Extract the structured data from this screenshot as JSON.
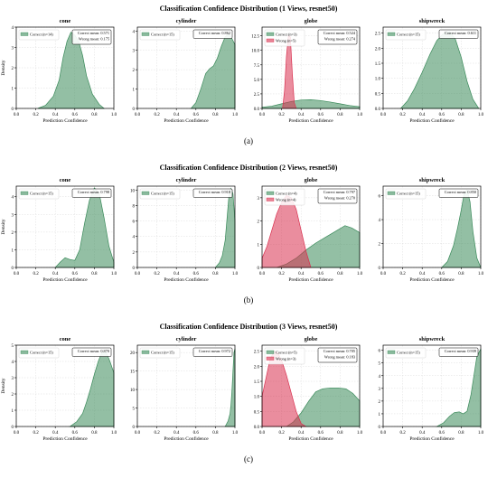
{
  "colors": {
    "correct": "#3a8a5a",
    "wrong": "#d9304f",
    "axis": "#000000",
    "grid": "#dddddd"
  },
  "chart_data": [
    {
      "type": "area",
      "title": "Classification Confidence Distribution (1 Views, resnet50)",
      "label": "(a)",
      "subplots": [
        {
          "title": "cone",
          "ylim": [
            0,
            4
          ],
          "yticks": [
            "0",
            "1",
            "2",
            "3",
            "4"
          ],
          "xlabel": "Prediction Confidence",
          "ylabel": "Density",
          "legend": [
            "Correct (n=14)"
          ],
          "stats": [
            "Correct mean: 0.571",
            "Wrong mean: 0.175"
          ],
          "series": [
            {
              "name": "Correct (n=14)",
              "kind": "correct",
              "x": [
                0.22,
                0.3,
                0.38,
                0.44,
                0.48,
                0.52,
                0.56,
                0.6,
                0.64,
                0.68,
                0.72,
                0.78,
                0.85,
                0.9
              ],
              "y": [
                0,
                0.15,
                0.6,
                1.4,
                2.5,
                3.3,
                3.75,
                3.6,
                3.3,
                2.6,
                1.6,
                0.7,
                0.2,
                0
              ]
            }
          ]
        },
        {
          "title": "cylinder",
          "ylim": [
            0,
            4.2
          ],
          "yticks": [
            "0",
            "1",
            "2",
            "3",
            "4"
          ],
          "xlabel": "Prediction Confidence",
          "ylabel": "",
          "legend": [
            "Correct (n=15)"
          ],
          "stats": [
            "Correct mean: 0.862"
          ],
          "series": [
            {
              "name": "Correct (n=15)",
              "kind": "correct",
              "x": [
                0.55,
                0.6,
                0.65,
                0.7,
                0.74,
                0.78,
                0.82,
                0.86,
                0.9,
                0.94,
                0.97,
                1.0
              ],
              "y": [
                0,
                0.3,
                1.0,
                1.8,
                2.05,
                2.2,
                2.6,
                3.2,
                3.7,
                3.85,
                3.6,
                3.3
              ]
            }
          ]
        },
        {
          "title": "globe",
          "ylim": [
            0,
            14
          ],
          "yticks": [
            "0.0",
            "2.5",
            "5.0",
            "7.5",
            "10.0",
            "12.5"
          ],
          "xlabel": "Prediction Confidence",
          "ylabel": "",
          "legend": [
            "Correct (n=3)",
            "Wrong (n=5)"
          ],
          "stats": [
            "Correct mean: 0.524",
            "Wrong mean: 0.274"
          ],
          "series": [
            {
              "name": "Correct (n=3)",
              "kind": "correct",
              "x": [
                0.0,
                0.1,
                0.2,
                0.3,
                0.4,
                0.5,
                0.6,
                0.7,
                0.8,
                0.9,
                1.0
              ],
              "y": [
                0.2,
                0.4,
                0.8,
                1.2,
                1.45,
                1.5,
                1.35,
                1.1,
                0.8,
                0.5,
                0.3
              ]
            },
            {
              "name": "Wrong (n=5)",
              "kind": "wrong",
              "x": [
                0.21,
                0.23,
                0.25,
                0.27,
                0.29,
                0.31,
                0.33,
                0.35
              ],
              "y": [
                0,
                3,
                9,
                12.5,
                12.3,
                6,
                1,
                0
              ]
            }
          ]
        },
        {
          "title": "shipwreck",
          "ylim": [
            0,
            2.7
          ],
          "yticks": [
            "0.0",
            "0.5",
            "1.0",
            "1.5",
            "2.0",
            "2.5"
          ],
          "xlabel": "Prediction Confidence",
          "ylabel": "",
          "legend": [
            "Correct (n=15)"
          ],
          "stats": [
            "Correct mean: 0.611"
          ],
          "series": [
            {
              "name": "Correct (n=15)",
              "kind": "correct",
              "x": [
                0.18,
                0.25,
                0.32,
                0.4,
                0.48,
                0.55,
                0.62,
                0.68,
                0.74,
                0.8,
                0.86,
                0.92,
                0.98
              ],
              "y": [
                0,
                0.25,
                0.65,
                1.2,
                1.8,
                2.25,
                2.5,
                2.55,
                2.3,
                1.7,
                0.9,
                0.3,
                0
              ]
            }
          ]
        }
      ]
    },
    {
      "type": "area",
      "title": "Classification Confidence Distribution (2 Views, resnet50)",
      "label": "(b)",
      "subplots": [
        {
          "title": "cone",
          "ylim": [
            0,
            4.6
          ],
          "yticks": [
            "0",
            "1",
            "2",
            "3",
            "4"
          ],
          "xlabel": "Prediction Confidence",
          "ylabel": "Density",
          "legend": [
            "Correct (n=15)"
          ],
          "stats": [
            "Correct mean: 0.798"
          ],
          "series": [
            {
              "name": "Correct (n=15)",
              "kind": "correct",
              "x": [
                0.4,
                0.45,
                0.5,
                0.55,
                0.6,
                0.65,
                0.7,
                0.75,
                0.8,
                0.85,
                0.9,
                0.95,
                1.0
              ],
              "y": [
                0,
                0.3,
                0.55,
                0.45,
                0.4,
                1.0,
                2.5,
                3.8,
                4.5,
                4.2,
                2.8,
                1.2,
                0.3
              ]
            }
          ]
        },
        {
          "title": "cylinder",
          "ylim": [
            0,
            10.5
          ],
          "yticks": [
            "0",
            "2",
            "4",
            "6",
            "8",
            "10"
          ],
          "xlabel": "Prediction Confidence",
          "ylabel": "",
          "legend": [
            "Correct (n=15)"
          ],
          "stats": [
            "Correct mean: 0.918"
          ],
          "series": [
            {
              "name": "Correct (n=15)",
              "kind": "correct",
              "x": [
                0.8,
                0.84,
                0.87,
                0.9,
                0.92,
                0.94,
                0.96,
                0.98,
                1.0
              ],
              "y": [
                0,
                0.6,
                1.5,
                3.5,
                6.5,
                9.5,
                10.2,
                9.5,
                6.0
              ]
            }
          ]
        },
        {
          "title": "globe",
          "ylim": [
            0,
            3.5
          ],
          "yticks": [
            "0",
            "1",
            "2",
            "3"
          ],
          "xlabel": "Prediction Confidence",
          "ylabel": "",
          "legend": [
            "Correct (n=4)",
            "Wrong (n=4)"
          ],
          "stats": [
            "Correct mean: 0.797",
            "Wrong mean: 0.270"
          ],
          "series": [
            {
              "name": "Correct (n=4)",
              "kind": "correct",
              "x": [
                0.15,
                0.25,
                0.35,
                0.45,
                0.55,
                0.65,
                0.75,
                0.85,
                0.92,
                1.0
              ],
              "y": [
                0,
                0.15,
                0.4,
                0.75,
                1.05,
                1.3,
                1.55,
                1.8,
                1.7,
                1.5
              ]
            },
            {
              "name": "Wrong (n=4)",
              "kind": "wrong",
              "x": [
                0.0,
                0.05,
                0.1,
                0.15,
                0.2,
                0.25,
                0.3,
                0.35,
                0.4,
                0.45,
                0.5
              ],
              "y": [
                0.4,
                0.9,
                1.6,
                2.3,
                2.8,
                3.1,
                3.0,
                2.5,
                1.6,
                0.7,
                0
              ]
            }
          ]
        },
        {
          "title": "shipwreck",
          "ylim": [
            0,
            6.8
          ],
          "yticks": [
            "0",
            "2",
            "4",
            "6"
          ],
          "xlabel": "Prediction Confidence",
          "ylabel": "",
          "legend": [
            "Correct (n=15)"
          ],
          "stats": [
            "Correct mean: 0.850"
          ],
          "series": [
            {
              "name": "Correct (n=15)",
              "kind": "correct",
              "x": [
                0.6,
                0.66,
                0.72,
                0.76,
                0.8,
                0.83,
                0.86,
                0.89,
                0.92,
                0.96,
                1.0
              ],
              "y": [
                0,
                0.5,
                1.8,
                3.2,
                4.8,
                6.2,
                6.5,
                5.5,
                3.0,
                0.8,
                0
              ]
            }
          ]
        }
      ]
    },
    {
      "type": "area",
      "title": "Classification Confidence Distribution (3 Views, resnet50)",
      "label": "(c)",
      "subplots": [
        {
          "title": "cone",
          "ylim": [
            0,
            5
          ],
          "yticks": [
            "0",
            "1",
            "2",
            "3",
            "4",
            "5"
          ],
          "xlabel": "Prediction Confidence",
          "ylabel": "Density",
          "legend": [
            "Correct (n=15)"
          ],
          "stats": [
            "Correct mean: 0.870"
          ],
          "series": [
            {
              "name": "Correct (n=15)",
              "kind": "correct",
              "x": [
                0.55,
                0.62,
                0.68,
                0.72,
                0.76,
                0.8,
                0.84,
                0.88,
                0.92,
                0.96,
                1.0
              ],
              "y": [
                0,
                0.3,
                0.8,
                1.5,
                2.3,
                3.2,
                4.0,
                4.6,
                4.6,
                4.0,
                3.3
              ]
            }
          ]
        },
        {
          "title": "cylinder",
          "ylim": [
            0,
            22
          ],
          "yticks": [
            "0",
            "5",
            "10",
            "15",
            "20"
          ],
          "xlabel": "Prediction Confidence",
          "ylabel": "",
          "legend": [
            "Correct (n=15)"
          ],
          "stats": [
            "Correct mean: 0.972"
          ],
          "series": [
            {
              "name": "Correct (n=15)",
              "kind": "correct",
              "x": [
                0.9,
                0.93,
                0.95,
                0.96,
                0.97,
                0.98,
                0.99,
                1.0
              ],
              "y": [
                0,
                1.5,
                3.5,
                6.0,
                10.0,
                15.0,
                20.0,
                21.0
              ]
            }
          ]
        },
        {
          "title": "globe",
          "ylim": [
            0,
            2.7
          ],
          "yticks": [
            "0.0",
            "0.5",
            "1.0",
            "1.5",
            "2.0",
            "2.5"
          ],
          "xlabel": "Prediction Confidence",
          "ylabel": "",
          "legend": [
            "Correct (n=5)",
            "Wrong (n=3)"
          ],
          "stats": [
            "Correct mean: 0.705",
            "Wrong mean: 0.183"
          ],
          "series": [
            {
              "name": "Correct (n=5)",
              "kind": "correct",
              "x": [
                0.25,
                0.32,
                0.4,
                0.48,
                0.55,
                0.62,
                0.7,
                0.78,
                0.86,
                0.93,
                1.0
              ],
              "y": [
                0,
                0.15,
                0.45,
                0.85,
                1.15,
                1.25,
                1.28,
                1.28,
                1.25,
                1.1,
                0.85
              ]
            },
            {
              "name": "Wrong (n=3)",
              "kind": "wrong",
              "x": [
                0.0,
                0.04,
                0.08,
                0.12,
                0.16,
                0.2,
                0.25,
                0.3,
                0.35,
                0.4,
                0.45
              ],
              "y": [
                1.0,
                1.6,
                2.2,
                2.5,
                2.45,
                2.2,
                1.7,
                1.1,
                0.5,
                0.1,
                0
              ]
            }
          ]
        },
        {
          "title": "shipwreck",
          "ylim": [
            0,
            6.4
          ],
          "yticks": [
            "0",
            "1",
            "2",
            "3",
            "4",
            "5",
            "6"
          ],
          "xlabel": "Prediction Confidence",
          "ylabel": "",
          "legend": [
            "Correct (n=15)"
          ],
          "stats": [
            "Correct mean: 0.939"
          ],
          "series": [
            {
              "name": "Correct (n=15)",
              "kind": "correct",
              "x": [
                0.55,
                0.62,
                0.68,
                0.73,
                0.78,
                0.82,
                0.86,
                0.9,
                0.93,
                0.96,
                1.0
              ],
              "y": [
                0,
                0.3,
                0.8,
                1.1,
                1.15,
                1.0,
                1.2,
                2.5,
                4.0,
                5.5,
                6.1
              ]
            }
          ]
        }
      ]
    }
  ]
}
